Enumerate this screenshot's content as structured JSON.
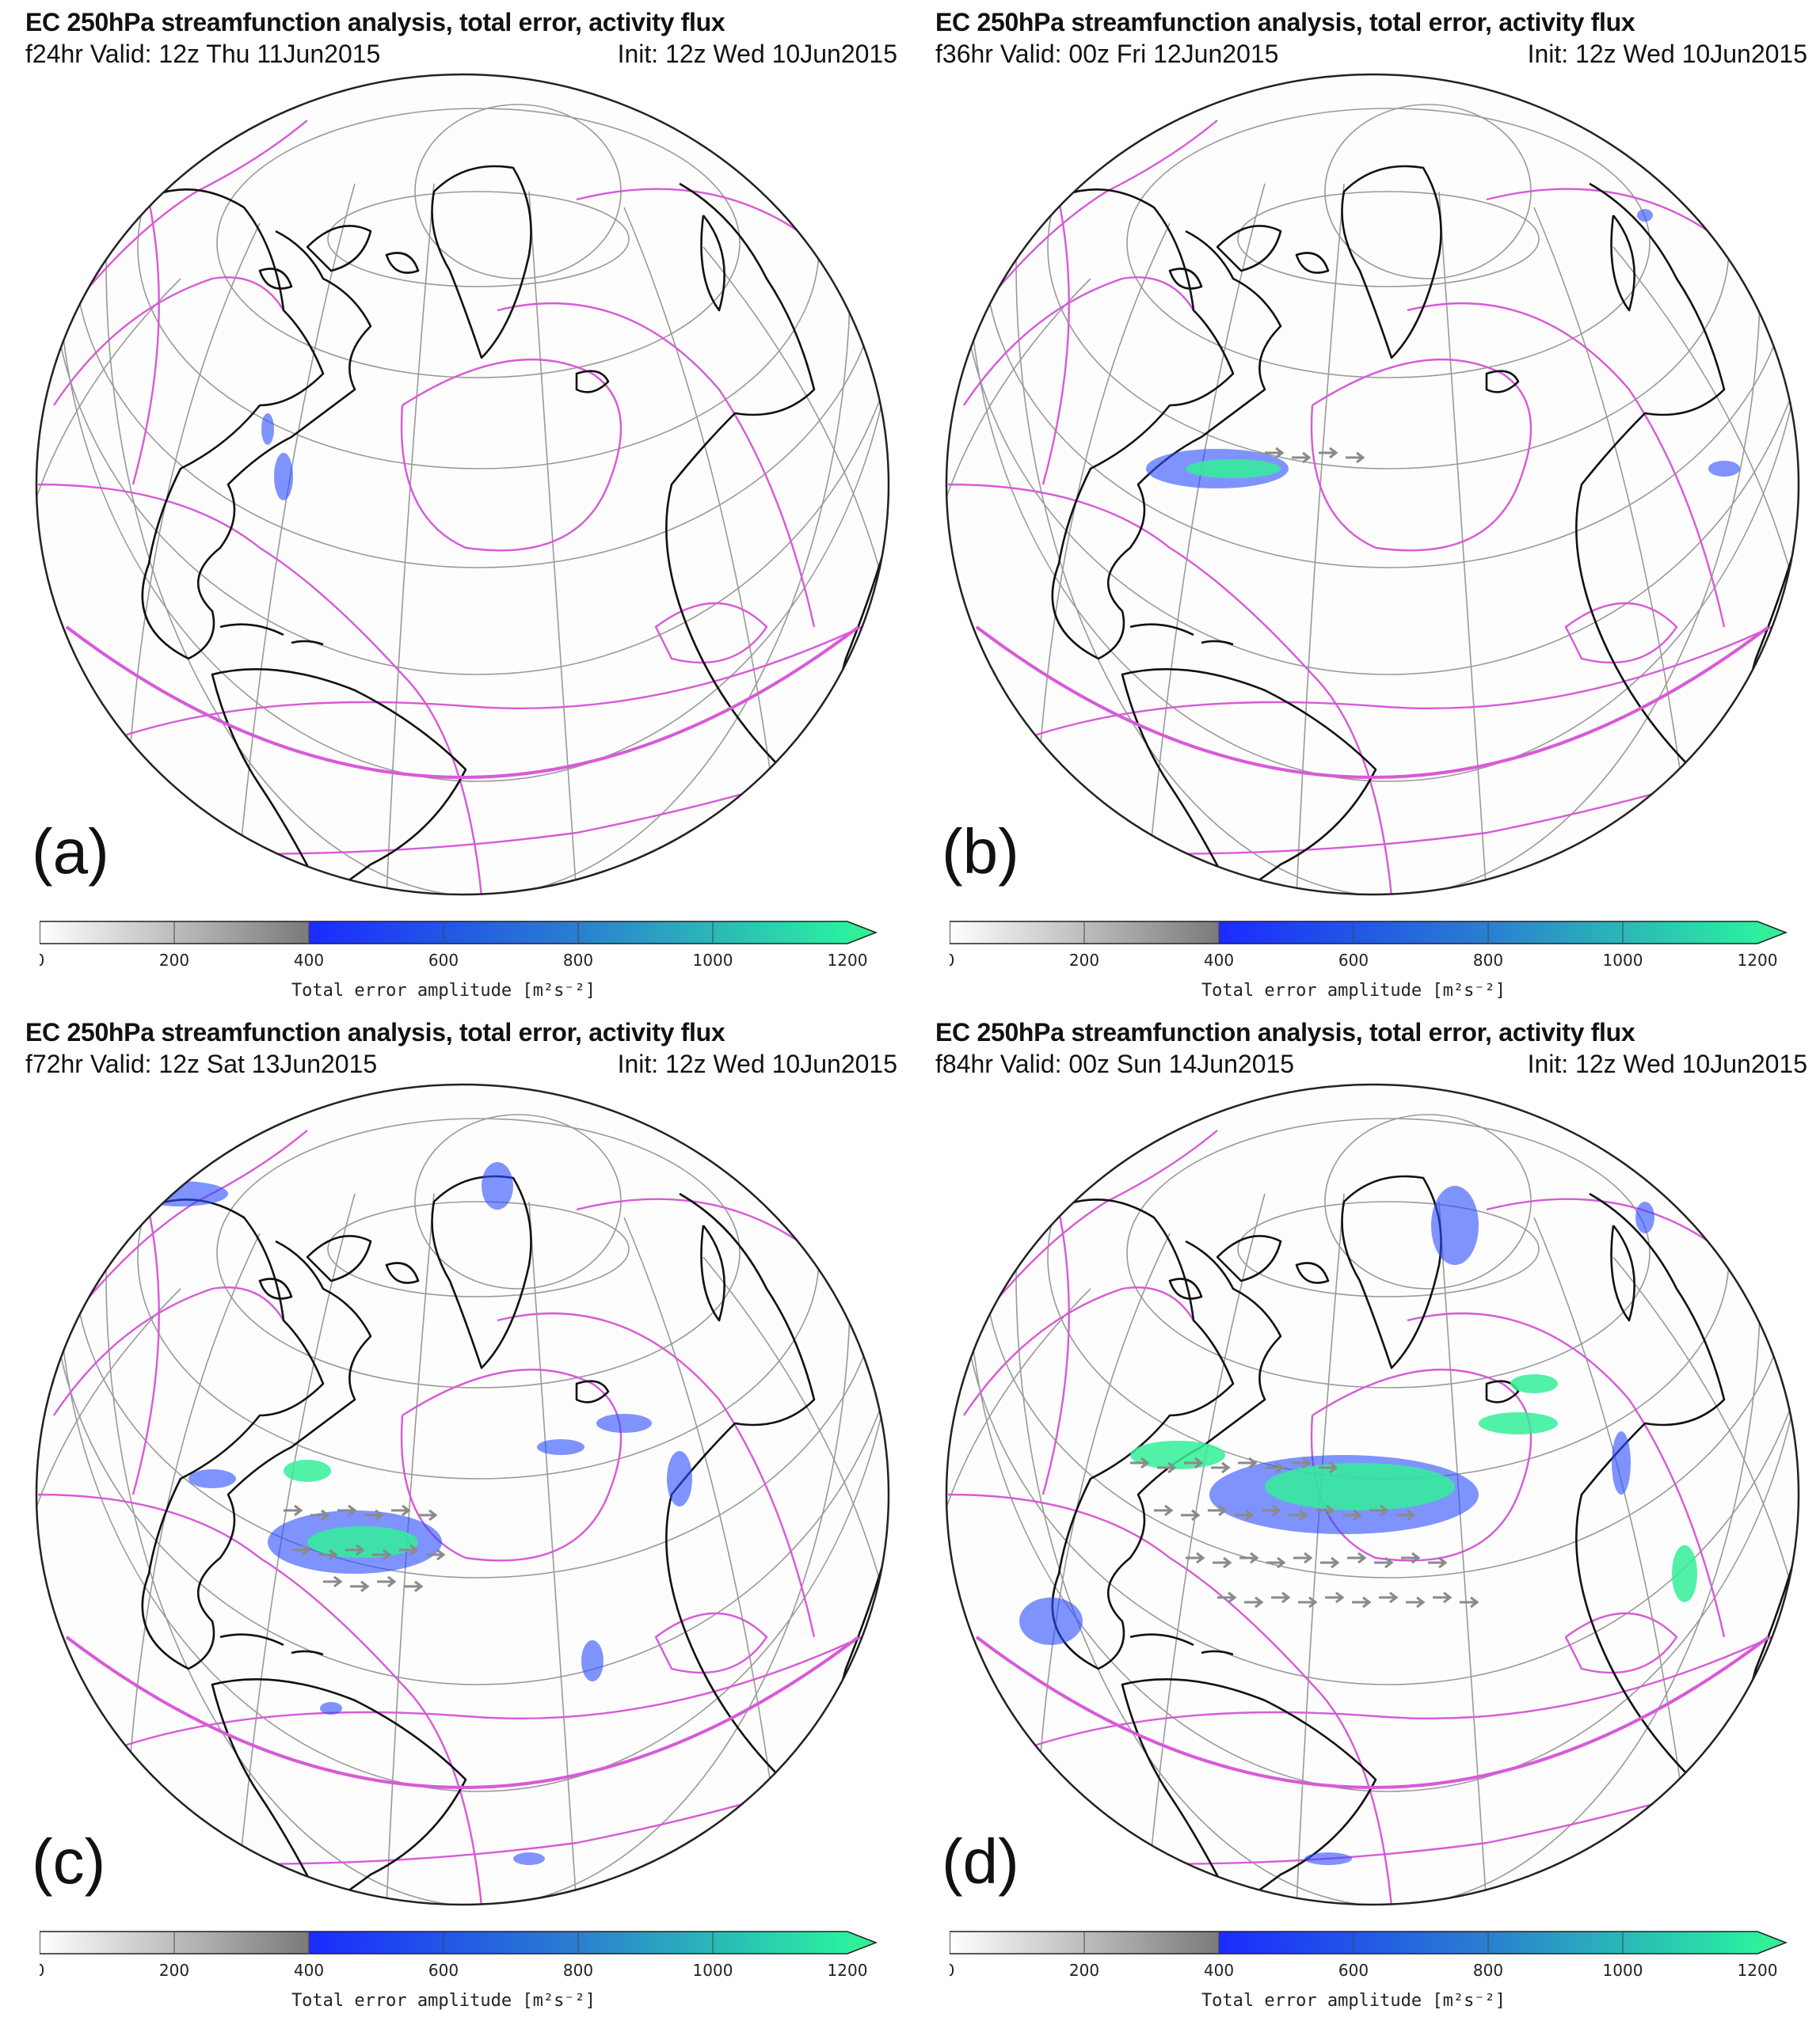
{
  "panels": [
    {
      "title": "EC 250hPa streamfunction analysis, total error, activity flux",
      "valid": "f24hr Valid: 12z Thu 11Jun2015",
      "init": "Init: 12z Wed 10Jun2015",
      "label": "(a)",
      "colorbar": {
        "ticks": [
          "0",
          "200",
          "400",
          "600",
          "800",
          "1000",
          "1200"
        ],
        "label": "Total error amplitude [m²s⁻²]"
      }
    },
    {
      "title": "EC 250hPa streamfunction analysis, total error, activity flux",
      "valid": "f36hr Valid: 00z Fri 12Jun2015",
      "init": "Init: 12z Wed 10Jun2015",
      "label": "(b)",
      "colorbar": {
        "ticks": [
          "0",
          "200",
          "400",
          "600",
          "800",
          "1000",
          "1200"
        ],
        "label": "Total error amplitude [m²s⁻²]"
      }
    },
    {
      "title": "EC 250hPa streamfunction analysis, total error, activity flux",
      "valid": "f72hr Valid: 12z Sat 13Jun2015",
      "init": "Init: 12z Wed 10Jun2015",
      "label": "(c)",
      "colorbar": {
        "ticks": [
          "0",
          "200",
          "400",
          "600",
          "800",
          "1000",
          "1200"
        ],
        "label": "Total error amplitude [m²s⁻²]"
      }
    },
    {
      "title": "EC 250hPa streamfunction analysis, total error, activity flux",
      "valid": "f84hr Valid: 00z Sun 14Jun2015",
      "init": "Init: 12z Wed 10Jun2015",
      "label": "(d)",
      "colorbar": {
        "ticks": [
          "0",
          "200",
          "400",
          "600",
          "800",
          "1000",
          "1200"
        ],
        "label": "Total error amplitude [m²s⁻²]"
      }
    }
  ],
  "colors": {
    "streamfunction": "#d85ad8",
    "coastline": "#111111",
    "graticule": "#9a9a9a",
    "error_low": "#bdbdbd",
    "error_mid": "#2b4cff",
    "error_high": "#33ee99",
    "flux_arrow": "#8a8a8a"
  }
}
